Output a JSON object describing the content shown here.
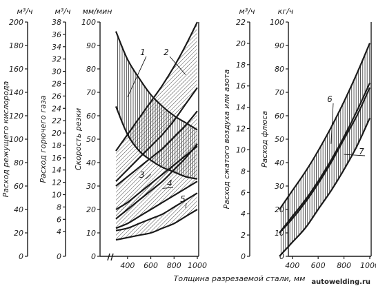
{
  "chart_data": {
    "type": "area",
    "xlabel": "Толщина разрезаемой стали, мм",
    "xticks": [
      400,
      600,
      800,
      1000
    ],
    "left_panel": {
      "axes": [
        {
          "unit": "м³/ч",
          "label": "Расход режущего кислорода",
          "range": [
            0,
            200
          ],
          "ticks": [
            0,
            20,
            40,
            60,
            80,
            100,
            120,
            140,
            160,
            180,
            200
          ]
        },
        {
          "unit": "м³/ч",
          "label": "Расход горючего газа",
          "range": [
            0,
            38
          ],
          "ticks": [
            0,
            4,
            6,
            8,
            10,
            12,
            14,
            16,
            18,
            20,
            22,
            24,
            26,
            28,
            30,
            32,
            34,
            36,
            38
          ]
        },
        {
          "unit": "мм/мин",
          "label": "Скорость резки",
          "range": [
            0,
            100
          ],
          "ticks": [
            0,
            10,
            20,
            30,
            40,
            50,
            60,
            70,
            80,
            90,
            100
          ]
        }
      ],
      "curves": [
        {
          "name": "1",
          "x": [
            300,
            400,
            500,
            600,
            700,
            800,
            900,
            1000
          ],
          "upper": [
            96,
            84,
            76,
            69,
            64,
            60,
            57,
            54
          ],
          "lower": [
            64,
            52,
            45,
            41,
            38,
            36,
            34,
            33
          ]
        },
        {
          "name": "2",
          "x": [
            300,
            400,
            500,
            600,
            700,
            800,
            900,
            1000
          ],
          "upper": [
            45,
            52,
            59,
            66,
            73,
            81,
            90,
            100
          ],
          "lower": [
            32,
            37,
            42,
            47,
            52,
            58,
            65,
            72
          ]
        },
        {
          "name": "3",
          "x": [
            300,
            400,
            500,
            600,
            700,
            800,
            900,
            1000
          ],
          "upper": [
            30,
            34,
            38,
            42,
            46,
            51,
            56,
            62
          ],
          "lower": [
            16,
            20,
            24,
            28,
            32,
            37,
            42,
            48
          ]
        },
        {
          "name": "4",
          "x": [
            300,
            400,
            500,
            600,
            700,
            800,
            900,
            1000
          ],
          "upper": [
            20,
            23,
            27,
            31,
            35,
            39,
            43,
            47
          ],
          "lower": [
            12,
            14,
            17,
            20,
            23,
            26,
            29,
            32
          ]
        },
        {
          "name": "5",
          "x": [
            300,
            400,
            500,
            600,
            700,
            800,
            900,
            1000
          ],
          "upper": [
            11,
            12,
            14,
            16,
            18,
            21,
            24,
            27
          ],
          "lower": [
            7,
            8,
            9,
            10,
            12,
            14,
            17,
            20
          ]
        }
      ]
    },
    "right_panel": {
      "axes": [
        {
          "unit": "м³/ч",
          "label": "Расход сжатого воздуха или азота",
          "range": [
            0,
            22
          ],
          "ticks": [
            0,
            2,
            4,
            6,
            8,
            10,
            12,
            14,
            16,
            18,
            20,
            22
          ]
        },
        {
          "unit": "кг/ч",
          "label": "Расход флюса",
          "range": [
            0,
            100
          ],
          "ticks": [
            0,
            10,
            20,
            30,
            40,
            50,
            60,
            70,
            80,
            90,
            100
          ]
        }
      ],
      "curves": [
        {
          "name": "6",
          "x": [
            300,
            400,
            500,
            600,
            700,
            800,
            900,
            1000
          ],
          "upper": [
            20,
            28,
            36,
            45,
            55,
            66,
            78,
            91
          ],
          "lower": [
            10,
            17,
            24,
            32,
            41,
            51,
            62,
            74
          ]
        },
        {
          "name": "7",
          "x": [
            300,
            400,
            500,
            600,
            700,
            800,
            900,
            1000
          ],
          "upper": [
            10,
            16,
            23,
            31,
            40,
            50,
            60,
            72
          ],
          "lower": [
            0,
            6,
            12,
            20,
            28,
            37,
            47,
            59
          ]
        }
      ]
    }
  },
  "watermark": "autowelding.ru"
}
